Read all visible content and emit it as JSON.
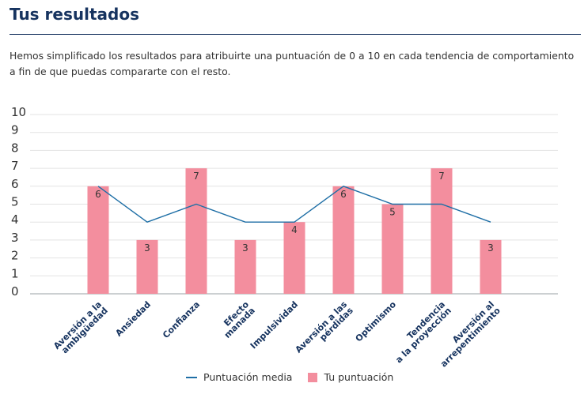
{
  "header": {
    "title": "Tus resultados",
    "intro": "Hemos simplificado los resultados para atribuirte una puntuación de 0 a 10 en cada tendencia de comportamiento a fin de que puedas compararte con el resto."
  },
  "chart_data": {
    "type": "bar",
    "categories": [
      [
        "Aversión a la",
        "ambigüedad"
      ],
      [
        "Ansiedad"
      ],
      [
        "Confianza"
      ],
      [
        "Efecto",
        "manada"
      ],
      [
        "Impulsividad"
      ],
      [
        "Aversión a las",
        "pérdidas"
      ],
      [
        "Optimismo"
      ],
      [
        "Tendencia",
        "a la proyección"
      ],
      [
        "Aversión al",
        "arrepentimiento"
      ]
    ],
    "series": [
      {
        "name": "Tu puntuación",
        "kind": "bar",
        "color": "#f38e9e",
        "values": [
          6,
          3,
          7,
          3,
          4,
          6,
          5,
          7,
          3
        ]
      },
      {
        "name": "Puntuación media",
        "kind": "line",
        "color": "#1f6fa6",
        "values": [
          6,
          4,
          5,
          4,
          4,
          6,
          5,
          5,
          4
        ]
      }
    ],
    "y_ticks": [
      0,
      1,
      2,
      3,
      4,
      5,
      6,
      7,
      8,
      9,
      10
    ],
    "ylim": [
      0,
      10
    ],
    "grid": true,
    "legend_position": "bottom-center",
    "text_color": "#333333",
    "tick_color": "#16335f"
  }
}
